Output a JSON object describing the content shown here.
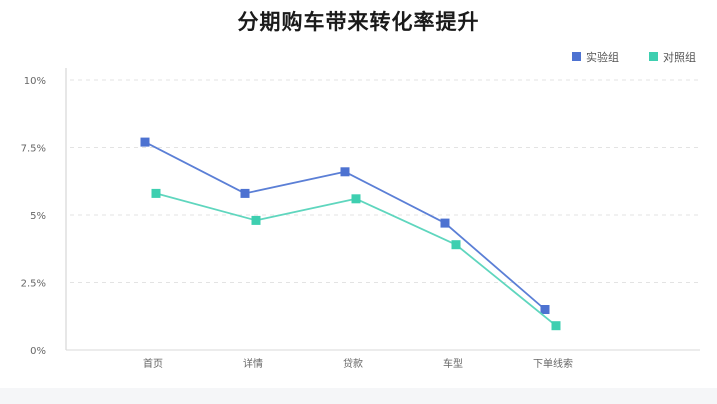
{
  "chart_data": {
    "type": "line",
    "title": "分期购车带来转化率提升",
    "categories": [
      "首页",
      "详情",
      "贷款",
      "车型",
      "下单线索"
    ],
    "y_ticks": [
      "0%",
      "2.5%",
      "5%",
      "7.5%",
      "10%"
    ],
    "ylim": [
      0,
      10
    ],
    "grid": true,
    "legend_position": "top-right",
    "series": [
      {
        "name": "实验组",
        "color": "#5b7fd6",
        "marker_color": "#4d72d1",
        "values": [
          7.7,
          5.8,
          6.6,
          4.7,
          1.5
        ]
      },
      {
        "name": "对照组",
        "color": "#5fd6be",
        "marker_color": "#3ecfb0",
        "values": [
          5.8,
          4.8,
          5.6,
          3.9,
          0.9
        ]
      }
    ]
  }
}
